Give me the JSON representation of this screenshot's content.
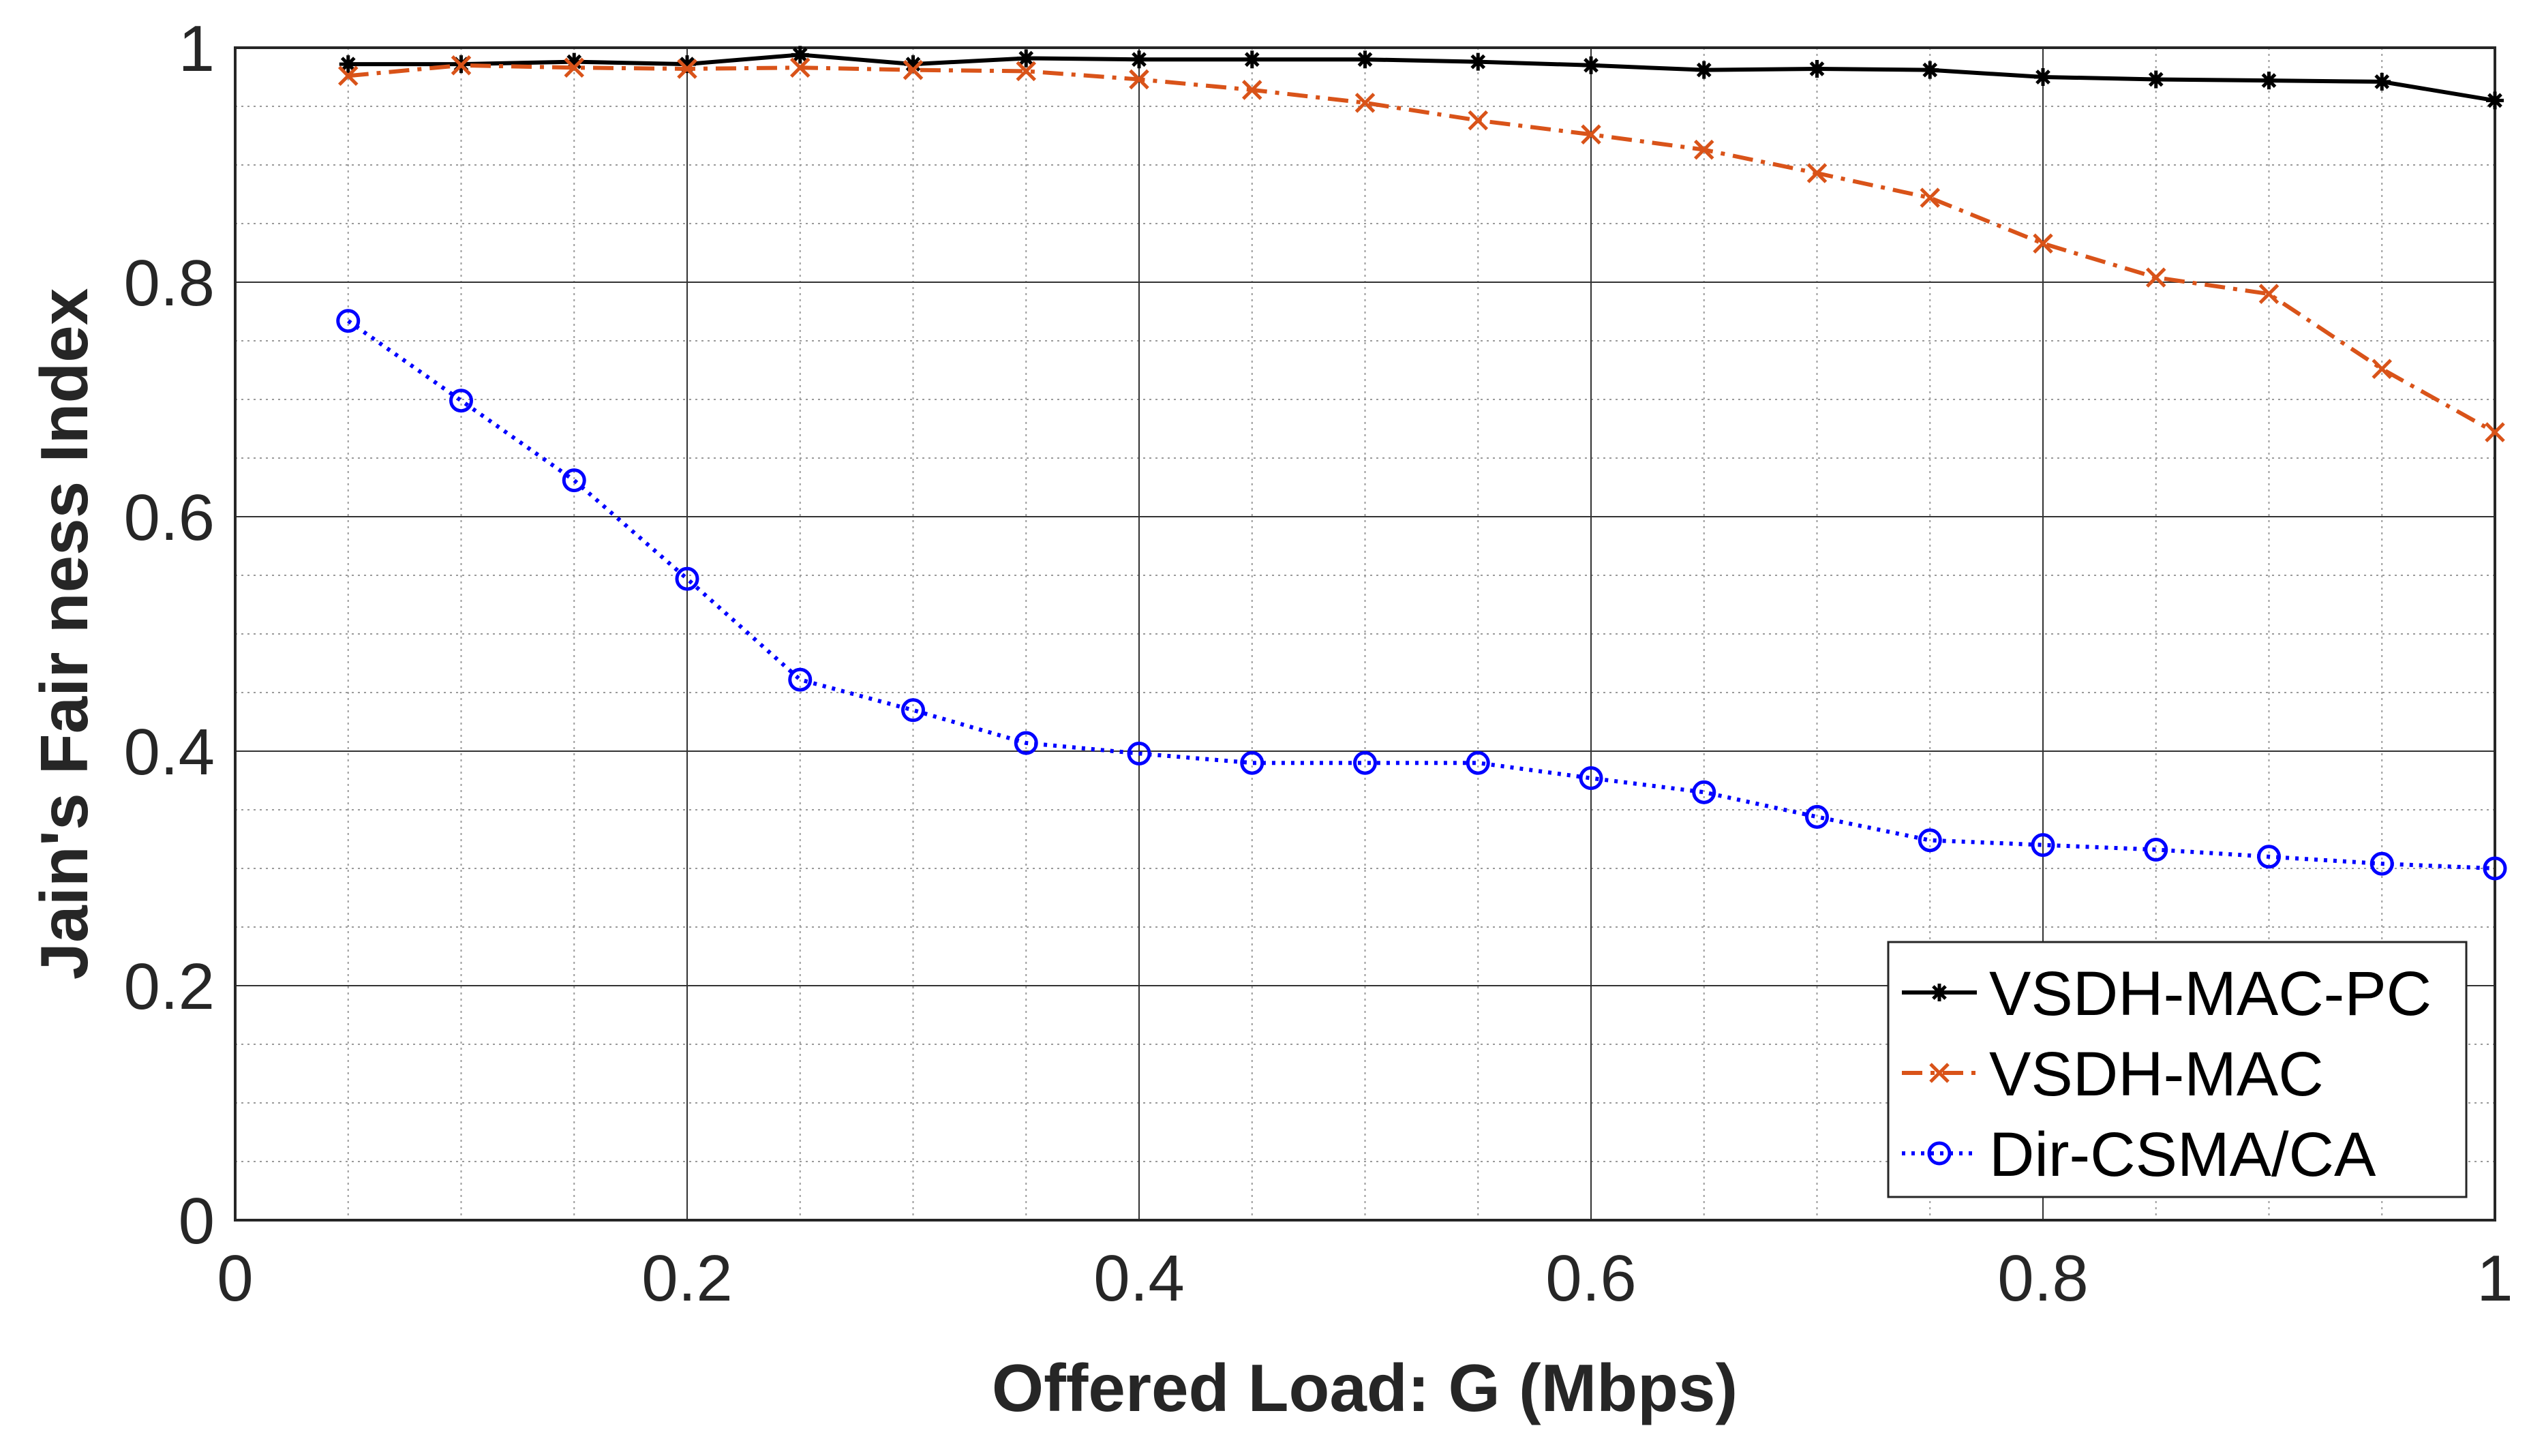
{
  "chart_data": {
    "type": "line",
    "title": "",
    "xlabel": "Offered Load: G (Mbps)",
    "ylabel": "Jain's Fair ness Index",
    "xlim": [
      0,
      1
    ],
    "ylim": [
      0,
      1
    ],
    "xticks": [
      0,
      0.2,
      0.4,
      0.6,
      0.8,
      1
    ],
    "xtick_labels": [
      "0",
      "0.2",
      "0.4",
      "0.6",
      "0.8",
      "1"
    ],
    "yticks": [
      0,
      0.2,
      0.4,
      0.6,
      0.8,
      1
    ],
    "ytick_labels": [
      "0",
      "0.2",
      "0.4",
      "0.6",
      "0.8",
      "1"
    ],
    "grid": true,
    "minor_grid": true,
    "legend_position": "bottom-right",
    "x": [
      0.05,
      0.1,
      0.15,
      0.2,
      0.25,
      0.3,
      0.35,
      0.4,
      0.45,
      0.5,
      0.55,
      0.6,
      0.65,
      0.7,
      0.75,
      0.8,
      0.85,
      0.9,
      0.95,
      1.0
    ],
    "series": [
      {
        "name": "VSDH-MAC-PC",
        "color": "#000000",
        "marker": "star",
        "line_style": "solid",
        "values": [
          0.986,
          0.986,
          0.988,
          0.986,
          0.994,
          0.986,
          0.991,
          0.99,
          0.99,
          0.99,
          0.988,
          0.985,
          0.981,
          0.982,
          0.981,
          0.975,
          0.973,
          0.972,
          0.971,
          0.955
        ]
      },
      {
        "name": "VSDH-MAC",
        "color": "#D95319",
        "marker": "x",
        "line_style": "dashdot",
        "values": [
          0.976,
          0.985,
          0.983,
          0.982,
          0.983,
          0.981,
          0.98,
          0.973,
          0.964,
          0.953,
          0.938,
          0.926,
          0.913,
          0.893,
          0.872,
          0.833,
          0.804,
          0.79,
          0.726,
          0.672
        ]
      },
      {
        "name": "Dir-CSMA/CA",
        "color": "#0000FF",
        "marker": "circle",
        "line_style": "dotted",
        "values": [
          0.767,
          0.699,
          0.631,
          0.547,
          0.461,
          0.435,
          0.407,
          0.398,
          0.39,
          0.39,
          0.39,
          0.377,
          0.365,
          0.344,
          0.324,
          0.32,
          0.316,
          0.31,
          0.304,
          0.3
        ]
      }
    ]
  }
}
